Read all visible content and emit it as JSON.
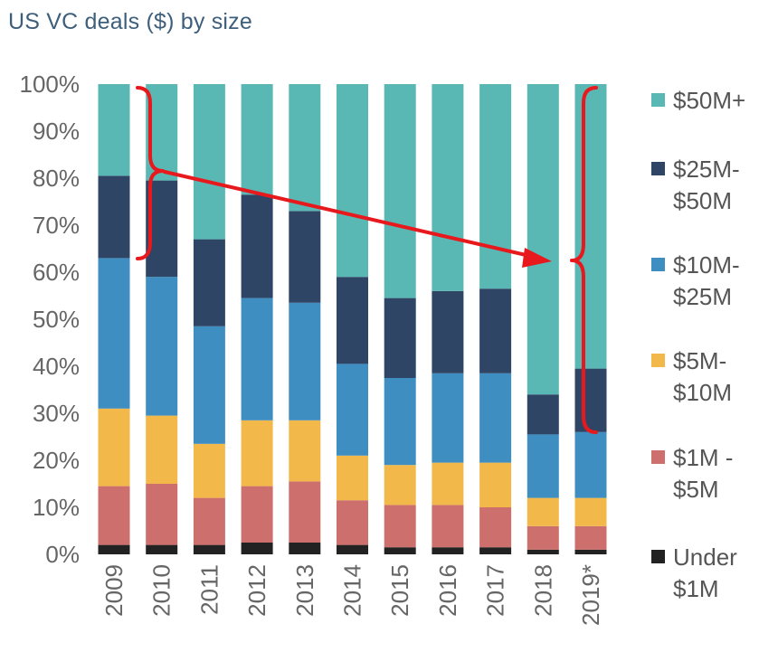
{
  "chart_data": {
    "type": "bar",
    "stacked": true,
    "percent": true,
    "title": "US VC deals ($) by size",
    "categories": [
      "2009",
      "2010",
      "2011",
      "2012",
      "2013",
      "2014",
      "2015",
      "2016",
      "2017",
      "2018",
      "2019*"
    ],
    "series": [
      {
        "name": "Under $1M",
        "values": [
          2,
          2,
          2,
          2.5,
          2.5,
          2,
          1.5,
          1.5,
          1.5,
          1,
          1
        ]
      },
      {
        "name": "$1M - $5M",
        "values": [
          12.5,
          13,
          10,
          12,
          13,
          9.5,
          9,
          9,
          8.5,
          5,
          5
        ]
      },
      {
        "name": "$5M- $10M",
        "values": [
          16.5,
          14.5,
          11.5,
          14,
          13,
          9.5,
          8.5,
          9,
          9.5,
          6,
          6
        ]
      },
      {
        "name": "$10M- $25M",
        "values": [
          32,
          29.5,
          25,
          26,
          25,
          19.5,
          18.5,
          19,
          19,
          13.5,
          14
        ]
      },
      {
        "name": "$25M- $50M",
        "values": [
          17.5,
          20.5,
          18.5,
          22,
          19.5,
          18.5,
          17,
          17.5,
          18,
          8.5,
          13.5
        ]
      },
      {
        "name": "$50M+",
        "values": [
          19.5,
          20.5,
          33,
          23.5,
          27,
          41,
          45.5,
          44,
          43.5,
          66,
          60.5
        ]
      }
    ],
    "yticks": [
      "0%",
      "10%",
      "20%",
      "30%",
      "40%",
      "50%",
      "60%",
      "70%",
      "80%",
      "90%",
      "100%"
    ],
    "ylim": [
      0,
      100
    ],
    "legend": [
      {
        "lines": [
          "$50M+"
        ]
      },
      {
        "lines": [
          "$25M-",
          "$50M"
        ]
      },
      {
        "lines": [
          "$10M-",
          "$25M"
        ]
      },
      {
        "lines": [
          "$5M-",
          "$10M"
        ]
      },
      {
        "lines": [
          "$1M -",
          "$5M"
        ]
      },
      {
        "lines": [
          "Under",
          "$1M"
        ]
      }
    ],
    "legend_position": "right",
    "colors": {
      "$50M+": "#59b8b3",
      "$25M- $50M": "#2e4566",
      "$10M- $25M": "#3e8ec2",
      "$5M- $10M": "#f2b94a",
      "$1M - $5M": "#cd6f6c",
      "Under $1M": "#222222",
      "annotation": "#e8191d"
    },
    "annotation": "red brackets around the $25M+ share in 2009 and 2018-2019, connected by a downward-sloping arrow"
  }
}
